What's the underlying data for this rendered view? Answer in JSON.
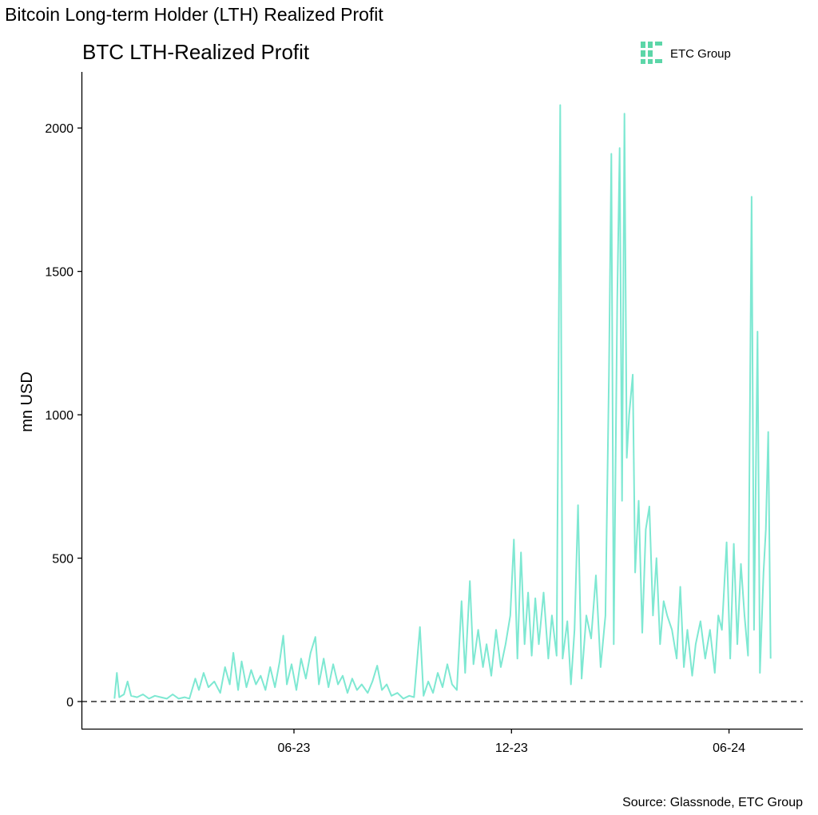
{
  "page_title": "Bitcoin Long-term Holder (LTH) Realized Profit",
  "source": "Source: Glassnode, ETC Group",
  "logo": {
    "text": "ETC Group",
    "color": "#5cd6a8"
  },
  "chart_data": {
    "type": "line",
    "title": "BTC LTH-Realized Profit",
    "xlabel": "",
    "ylabel": "mn USD",
    "ylim": [
      -100,
      2200
    ],
    "xlim": [
      "2022-12-10",
      "2024-07-28"
    ],
    "y_ticks": [
      0,
      500,
      1000,
      1500,
      2000
    ],
    "y_tick_labels": [
      "0",
      "500",
      "1000",
      "1500",
      "2000"
    ],
    "x_ticks": [
      "2023-06-01",
      "2023-12-01",
      "2024-06-01"
    ],
    "x_tick_labels": [
      "06-23",
      "12-23",
      "06-24"
    ],
    "reference_line": {
      "y": 0,
      "style": "dashed",
      "color": "#000000"
    },
    "grid": false,
    "line_color": "#7ee8d2",
    "series": [
      {
        "x": [
          "2023-01-01",
          "2023-01-03",
          "2023-01-05",
          "2023-01-09",
          "2023-01-12",
          "2023-01-15",
          "2023-01-20",
          "2023-01-25",
          "2023-01-30",
          "2023-02-04",
          "2023-02-09",
          "2023-02-14",
          "2023-02-19",
          "2023-02-24",
          "2023-03-01",
          "2023-03-05",
          "2023-03-10",
          "2023-03-13",
          "2023-03-17",
          "2023-03-21",
          "2023-03-26",
          "2023-03-31",
          "2023-04-04",
          "2023-04-08",
          "2023-04-11",
          "2023-04-15",
          "2023-04-18",
          "2023-04-22",
          "2023-04-26",
          "2023-04-30",
          "2023-05-04",
          "2023-05-08",
          "2023-05-12",
          "2023-05-16",
          "2023-05-20",
          "2023-05-23",
          "2023-05-26",
          "2023-05-30",
          "2023-06-03",
          "2023-06-07",
          "2023-06-11",
          "2023-06-15",
          "2023-06-19",
          "2023-06-22",
          "2023-06-26",
          "2023-06-30",
          "2023-07-04",
          "2023-07-08",
          "2023-07-12",
          "2023-07-16",
          "2023-07-20",
          "2023-07-24",
          "2023-07-28",
          "2023-08-02",
          "2023-08-06",
          "2023-08-10",
          "2023-08-14",
          "2023-08-18",
          "2023-08-22",
          "2023-08-27",
          "2023-09-01",
          "2023-09-06",
          "2023-09-10",
          "2023-09-15",
          "2023-09-18",
          "2023-09-22",
          "2023-09-26",
          "2023-09-30",
          "2023-10-04",
          "2023-10-08",
          "2023-10-12",
          "2023-10-16",
          "2023-10-20",
          "2023-10-23",
          "2023-10-27",
          "2023-10-30",
          "2023-11-03",
          "2023-11-07",
          "2023-11-10",
          "2023-11-14",
          "2023-11-18",
          "2023-11-22",
          "2023-11-26",
          "2023-11-30",
          "2023-12-03",
          "2023-12-06",
          "2023-12-09",
          "2023-12-12",
          "2023-12-15",
          "2023-12-18",
          "2023-12-21",
          "2023-12-24",
          "2023-12-28",
          "2024-01-01",
          "2024-01-04",
          "2024-01-08",
          "2024-01-10",
          "2024-01-11",
          "2024-01-13",
          "2024-01-17",
          "2024-01-20",
          "2024-01-23",
          "2024-01-26",
          "2024-01-29",
          "2024-02-02",
          "2024-02-06",
          "2024-02-10",
          "2024-02-14",
          "2024-02-18",
          "2024-02-21",
          "2024-02-23",
          "2024-02-25",
          "2024-02-28",
          "2024-03-01",
          "2024-03-03",
          "2024-03-05",
          "2024-03-07",
          "2024-03-09",
          "2024-03-12",
          "2024-03-14",
          "2024-03-17",
          "2024-03-20",
          "2024-03-23",
          "2024-03-26",
          "2024-03-29",
          "2024-04-01",
          "2024-04-04",
          "2024-04-07",
          "2024-04-10",
          "2024-04-14",
          "2024-04-18",
          "2024-04-21",
          "2024-04-24",
          "2024-04-27",
          "2024-05-01",
          "2024-05-04",
          "2024-05-08",
          "2024-05-12",
          "2024-05-16",
          "2024-05-20",
          "2024-05-23",
          "2024-05-26",
          "2024-05-30",
          "2024-06-02",
          "2024-06-05",
          "2024-06-08",
          "2024-06-11",
          "2024-06-14",
          "2024-06-17",
          "2024-06-19",
          "2024-06-20",
          "2024-06-22",
          "2024-06-25",
          "2024-06-27",
          "2024-06-30",
          "2024-07-02",
          "2024-07-04",
          "2024-07-06"
        ],
        "y": [
          10,
          100,
          15,
          25,
          70,
          20,
          15,
          25,
          10,
          20,
          15,
          10,
          25,
          10,
          15,
          10,
          80,
          40,
          100,
          50,
          70,
          30,
          120,
          60,
          170,
          40,
          140,
          50,
          110,
          60,
          90,
          40,
          120,
          50,
          140,
          230,
          60,
          130,
          40,
          150,
          80,
          170,
          225,
          60,
          150,
          50,
          130,
          60,
          90,
          30,
          80,
          40,
          60,
          30,
          70,
          125,
          40,
          60,
          20,
          30,
          10,
          20,
          15,
          260,
          20,
          70,
          30,
          100,
          50,
          130,
          60,
          40,
          350,
          100,
          420,
          130,
          250,
          120,
          200,
          90,
          250,
          120,
          200,
          300,
          565,
          150,
          520,
          200,
          380,
          160,
          360,
          200,
          380,
          150,
          300,
          160,
          1440,
          2080,
          150,
          280,
          60,
          250,
          685,
          80,
          300,
          220,
          440,
          120,
          300,
          1140,
          1910,
          200,
          1400,
          1930,
          700,
          2050,
          850,
          1000,
          1140,
          450,
          700,
          240,
          600,
          680,
          300,
          500,
          200,
          350,
          300,
          250,
          150,
          400,
          120,
          250,
          90,
          200,
          280,
          150,
          250,
          100,
          300,
          250,
          555,
          150,
          550,
          200,
          480,
          300,
          160,
          1240,
          1760,
          250,
          1290,
          100,
          450,
          600,
          940,
          150
        ]
      }
    ]
  }
}
